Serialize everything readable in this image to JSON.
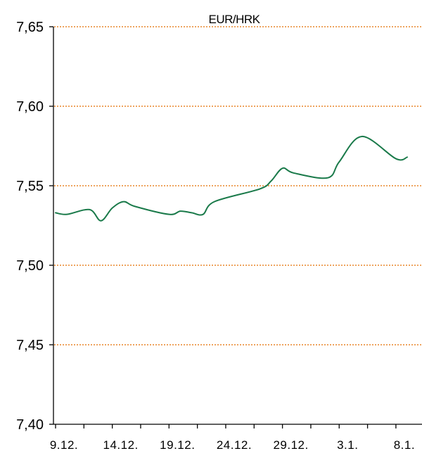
{
  "chart_data": {
    "type": "line",
    "title": "EUR/HRK",
    "xlabel": "",
    "ylabel": "",
    "ylim": [
      7.4,
      7.65
    ],
    "yticks": [
      7.4,
      7.45,
      7.5,
      7.55,
      7.6,
      7.65
    ],
    "ytick_labels": [
      "7,40",
      "7,45",
      "7,50",
      "7,55",
      "7,60",
      "7,65"
    ],
    "grid": true,
    "x_categories": [
      "9.12.",
      "14.12.",
      "19.12.",
      "24.12.",
      "29.12.",
      "3.1.",
      "8.1."
    ],
    "series": [
      {
        "x": [
          "9.12.",
          "10.12.",
          "12.12.",
          "13.12.",
          "14.12.",
          "15.12.",
          "16.12.",
          "19.12.",
          "20.12.",
          "21.12.",
          "22.12.",
          "23.12.",
          "27.12.",
          "28.12.",
          "29.12.",
          "30.12.",
          "2.1.",
          "3.1.",
          "5.1.",
          "8.1.",
          "9.1."
        ],
        "values": [
          7.533,
          7.532,
          7.535,
          7.528,
          7.536,
          7.54,
          7.537,
          7.532,
          7.534,
          7.533,
          7.532,
          7.54,
          7.548,
          7.553,
          7.561,
          7.558,
          7.555,
          7.565,
          7.581,
          7.567,
          7.568
        ]
      }
    ],
    "colors": {
      "series": "#1a7a4a",
      "grid": "#e8862a",
      "axis": "#000000"
    }
  }
}
